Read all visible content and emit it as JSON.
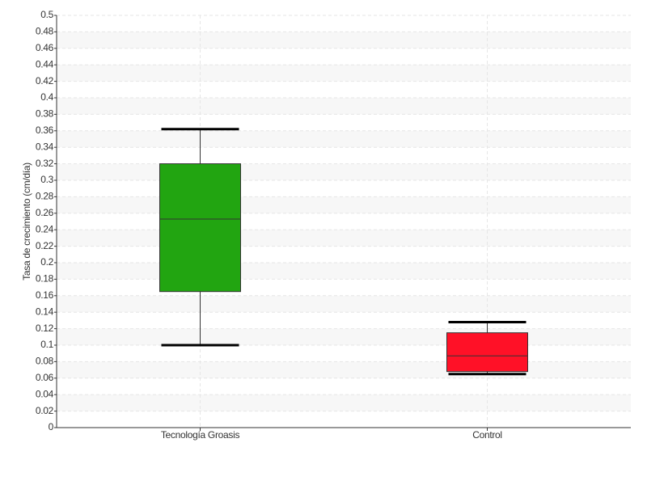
{
  "chart_data": {
    "type": "box",
    "ylabel": "Tasa de crecimiento (cm/día)",
    "categories": [
      "Tecnología Groasis",
      "Control"
    ],
    "colors": [
      "#22a511",
      "#ff1127"
    ],
    "min": [
      0.1,
      0.065
    ],
    "q1": [
      0.165,
      0.068
    ],
    "median": [
      0.253,
      0.087
    ],
    "q3": [
      0.32,
      0.115
    ],
    "max": [
      0.362,
      0.128
    ],
    "ylim": [
      0,
      0.5
    ],
    "yticks": [
      0,
      0.02,
      0.04,
      0.06,
      0.08,
      0.1,
      0.12,
      0.14,
      0.16,
      0.18,
      0.2,
      0.22,
      0.24,
      0.26,
      0.28,
      0.3,
      0.32,
      0.34,
      0.36,
      0.38,
      0.4,
      0.42,
      0.44,
      0.46,
      0.48,
      0.5
    ],
    "grid": true
  }
}
